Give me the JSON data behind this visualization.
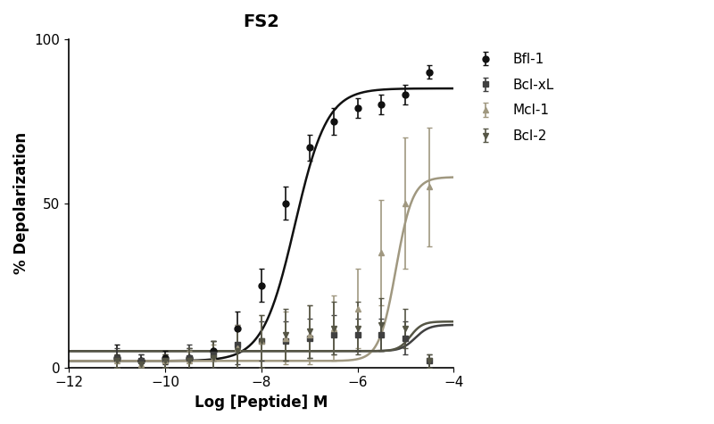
{
  "title": "FS2",
  "xlabel": "Log [Peptide] M",
  "ylabel": "% Depolarization",
  "xlim": [
    -12,
    -4
  ],
  "ylim": [
    0,
    100
  ],
  "xticks": [
    -12,
    -10,
    -8,
    -6,
    -4
  ],
  "yticks": [
    0,
    50,
    100
  ],
  "background_color": "#ffffff",
  "series": {
    "Bfl-1": {
      "color": "#111111",
      "marker": "o",
      "ec50_log": -7.3,
      "hill": 1.3,
      "top": 85,
      "bottom": 2,
      "x_data": [
        -11.0,
        -10.5,
        -10.0,
        -9.5,
        -9.0,
        -8.5,
        -8.0,
        -7.5,
        -7.0,
        -6.5,
        -6.0,
        -5.5,
        -5.0,
        -4.5
      ],
      "y_data": [
        3,
        2,
        3,
        3,
        5,
        12,
        25,
        50,
        67,
        75,
        79,
        80,
        83,
        90
      ],
      "y_err": [
        4,
        2,
        2,
        3,
        3,
        5,
        5,
        5,
        4,
        4,
        3,
        3,
        3,
        2
      ]
    },
    "Bcl-xL": {
      "color": "#404040",
      "marker": "s",
      "ec50_log": -4.8,
      "hill": 3.0,
      "top": 13,
      "bottom": 5,
      "x_data": [
        -11.0,
        -10.5,
        -10.0,
        -9.5,
        -9.0,
        -8.5,
        -8.0,
        -7.5,
        -7.0,
        -6.5,
        -6.0,
        -5.5,
        -5.0,
        -4.5
      ],
      "y_data": [
        3,
        2,
        2,
        3,
        4,
        7,
        8,
        8,
        9,
        10,
        10,
        10,
        9,
        2
      ],
      "y_err": [
        3,
        2,
        2,
        4,
        4,
        6,
        6,
        6,
        6,
        6,
        5,
        5,
        5,
        2
      ]
    },
    "Mcl-1": {
      "color": "#a09880",
      "marker": "^",
      "ec50_log": -5.2,
      "hill": 2.5,
      "top": 58,
      "bottom": 2,
      "x_data": [
        -11.0,
        -10.5,
        -10.0,
        -9.5,
        -9.0,
        -8.5,
        -8.0,
        -7.5,
        -7.0,
        -6.5,
        -6.0,
        -5.5,
        -5.0,
        -4.5
      ],
      "y_data": [
        2,
        1,
        2,
        2,
        3,
        6,
        8,
        9,
        10,
        12,
        18,
        35,
        50,
        55
      ],
      "y_err": [
        2,
        1,
        2,
        3,
        4,
        7,
        8,
        8,
        9,
        10,
        12,
        16,
        20,
        18
      ]
    },
    "Bcl-2": {
      "color": "#555545",
      "marker": "v",
      "ec50_log": -4.9,
      "hill": 3.5,
      "top": 14,
      "bottom": 5,
      "x_data": [
        -11.0,
        -10.5,
        -10.0,
        -9.5,
        -9.0,
        -8.5,
        -8.0,
        -7.5,
        -7.0,
        -6.5,
        -6.0,
        -5.5,
        -5.0,
        -4.5
      ],
      "y_data": [
        2,
        1,
        2,
        2,
        3,
        5,
        8,
        10,
        11,
        12,
        12,
        13,
        12,
        2
      ],
      "y_err": [
        2,
        1,
        2,
        4,
        5,
        7,
        8,
        8,
        8,
        8,
        8,
        8,
        6,
        2
      ]
    }
  },
  "legend_fontsize": 11,
  "title_fontsize": 14,
  "axis_fontsize": 12,
  "tick_fontsize": 11
}
